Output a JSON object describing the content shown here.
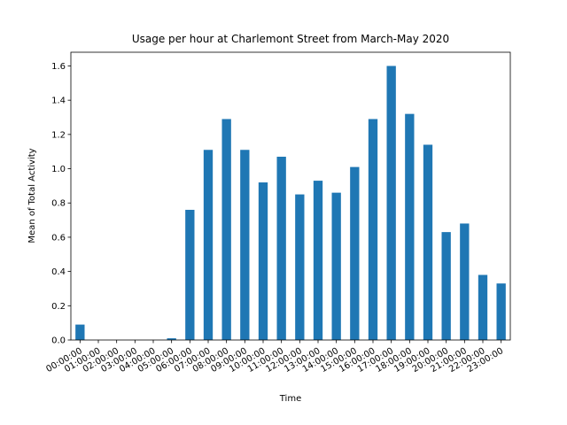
{
  "chart_data": {
    "type": "bar",
    "title": "Usage per hour at Charlemont Street from March-May 2020",
    "xlabel": "Time",
    "ylabel": "Mean of Total Activity",
    "categories": [
      "00:00:00",
      "01:00:00",
      "02:00:00",
      "03:00:00",
      "04:00:00",
      "05:00:00",
      "06:00:00",
      "07:00:00",
      "08:00:00",
      "09:00:00",
      "10:00:00",
      "11:00:00",
      "12:00:00",
      "13:00:00",
      "14:00:00",
      "15:00:00",
      "16:00:00",
      "17:00:00",
      "18:00:00",
      "19:00:00",
      "20:00:00",
      "21:00:00",
      "22:00:00",
      "23:00:00"
    ],
    "values": [
      0.09,
      0,
      0,
      0,
      0,
      0.01,
      0.76,
      1.11,
      1.29,
      1.11,
      0.92,
      1.07,
      0.85,
      0.93,
      0.86,
      1.01,
      1.29,
      1.6,
      1.32,
      1.14,
      0.63,
      0.68,
      0.38,
      0.33
    ],
    "color": "#1f77b4",
    "ylim": [
      0,
      1.68
    ],
    "yticks": [
      {
        "value": 0,
        "label": "0.0"
      },
      {
        "value": 0.2,
        "label": "0.2"
      },
      {
        "value": 0.4,
        "label": "0.4"
      },
      {
        "value": 0.6,
        "label": "0.6"
      },
      {
        "value": 0.8,
        "label": "0.8"
      },
      {
        "value": 1,
        "label": "1.0"
      },
      {
        "value": 1.2,
        "label": "1.2"
      },
      {
        "value": 1.4,
        "label": "1.4"
      },
      {
        "value": 1.6,
        "label": "1.6"
      }
    ],
    "grid": false
  }
}
